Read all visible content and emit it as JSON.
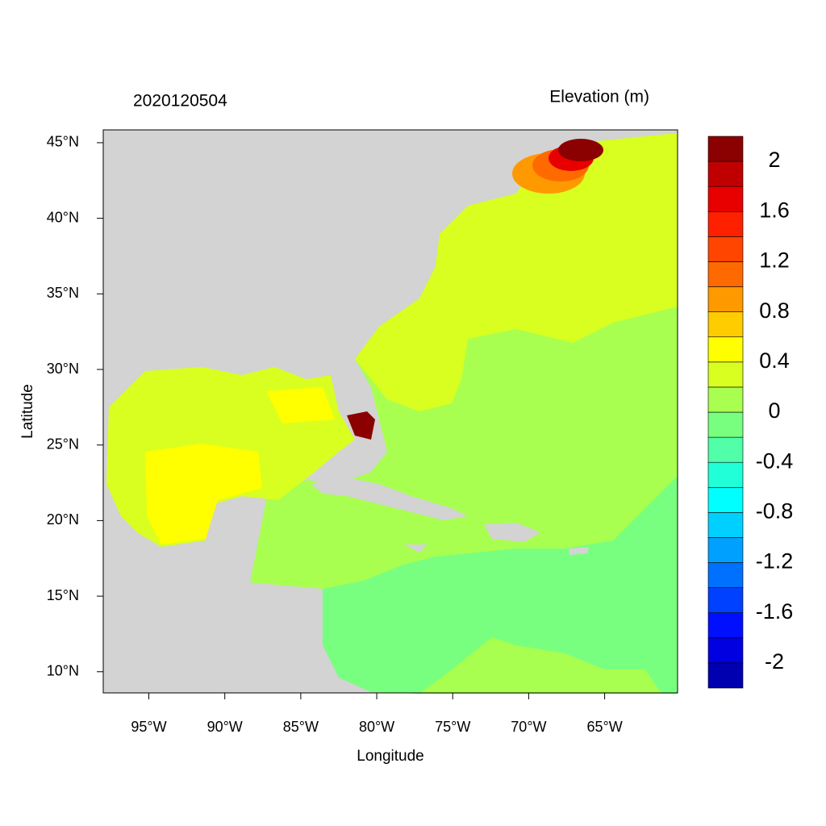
{
  "chart_data": {
    "type": "map",
    "title": "2020120504",
    "subtitle": "Elevation (m)",
    "x_label": "Longitude",
    "y_label": "Latitude",
    "xlim": [
      -98,
      -60.2
    ],
    "ylim": [
      8.6,
      45.85
    ],
    "xticks": [
      {
        "value": -95,
        "label": "95°W"
      },
      {
        "value": -90,
        "label": "90°W"
      },
      {
        "value": -85,
        "label": "85°W"
      },
      {
        "value": -80,
        "label": "80°W"
      },
      {
        "value": -75,
        "label": "75°W"
      },
      {
        "value": -70,
        "label": "70°W"
      },
      {
        "value": -65,
        "label": "65°W"
      }
    ],
    "yticks": [
      {
        "value": 10,
        "label": "10°N"
      },
      {
        "value": 15,
        "label": "15°N"
      },
      {
        "value": 20,
        "label": "20°N"
      },
      {
        "value": 25,
        "label": "25°N"
      },
      {
        "value": 30,
        "label": "30°N"
      },
      {
        "value": 35,
        "label": "35°N"
      },
      {
        "value": 40,
        "label": "40°N"
      },
      {
        "value": 45,
        "label": "45°N"
      }
    ],
    "colorbar": {
      "lim": [
        -2.2,
        2.2
      ],
      "levels": [
        -2,
        -1.8,
        -1.6,
        -1.4,
        -1.2,
        -1,
        -0.8,
        -0.6,
        -0.4,
        -0.2,
        0,
        0.2,
        0.4,
        0.6,
        0.8,
        1,
        1.2,
        1.4,
        1.6,
        1.8,
        2
      ],
      "colors": [
        "#0000b0",
        "#0000e0",
        "#0010ff",
        "#0040ff",
        "#0070ff",
        "#00a0ff",
        "#00d0ff",
        "#00ffff",
        "#20ffd8",
        "#50ffa8",
        "#78ff80",
        "#a8ff50",
        "#d8ff20",
        "#ffff00",
        "#ffcc00",
        "#ff9900",
        "#ff6a00",
        "#ff4500",
        "#ff2000",
        "#e80000",
        "#c00000",
        "#8b0000"
      ],
      "ticks": [
        -2,
        -1.6,
        -1.2,
        -0.8,
        -0.4,
        0,
        0.4,
        0.8,
        1.2,
        1.6,
        2
      ]
    }
  }
}
